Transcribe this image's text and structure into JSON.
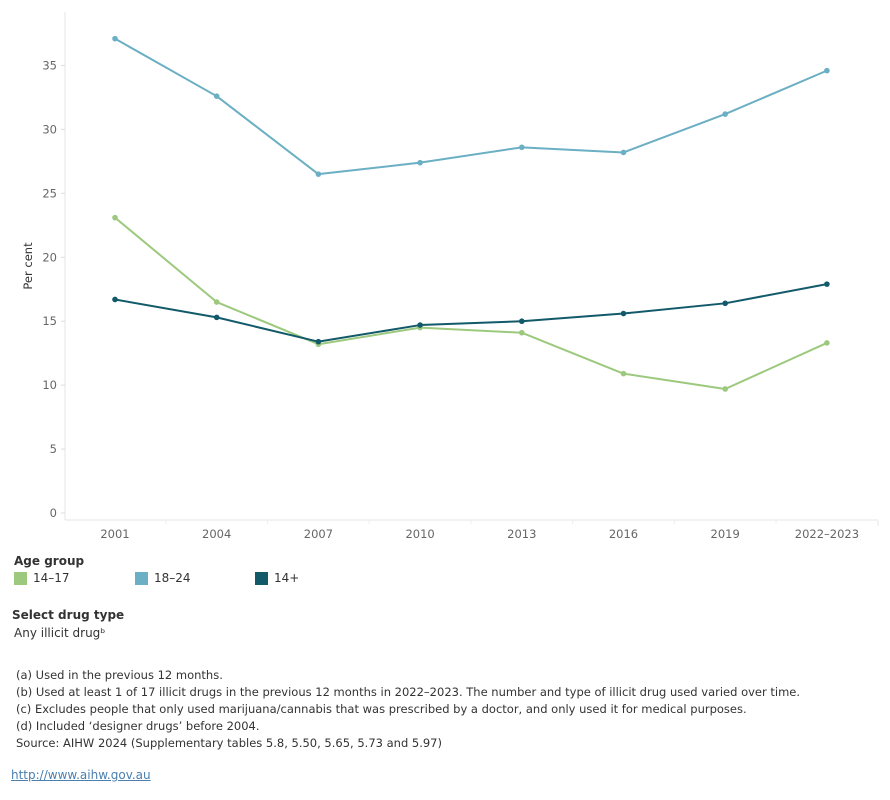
{
  "chart_data": {
    "type": "line",
    "title": "",
    "xlabel": "",
    "ylabel": "Per cent",
    "categories": [
      "2001",
      "2004",
      "2007",
      "2010",
      "2013",
      "2016",
      "2019",
      "2022–2023"
    ],
    "ylim": [
      0,
      38
    ],
    "yticks": [
      0,
      5,
      10,
      15,
      20,
      25,
      30,
      35
    ],
    "grid": false,
    "legend_placement": "bottom-left",
    "series": [
      {
        "name": "14–17",
        "color": "#9cc97d",
        "values": [
          23.1,
          16.5,
          13.2,
          14.5,
          14.1,
          10.9,
          9.7,
          13.3
        ]
      },
      {
        "name": "18–24",
        "color": "#6aafc3",
        "values": [
          37.1,
          32.6,
          26.5,
          27.4,
          28.6,
          28.2,
          31.2,
          34.6
        ]
      },
      {
        "name": "14+",
        "color": "#125a6a",
        "values": [
          16.7,
          15.3,
          13.4,
          14.7,
          15.0,
          15.6,
          16.4,
          17.9
        ]
      }
    ]
  },
  "legend": {
    "title": "Age group",
    "items": [
      {
        "label": "14–17",
        "color": "#9cc97d"
      },
      {
        "label": "18–24",
        "color": "#6aafc3"
      },
      {
        "label": "14+",
        "color": "#125a6a"
      }
    ]
  },
  "filter": {
    "title": "Select drug type",
    "value": "Any illicit drugᵇ"
  },
  "notes": [
    "(a) Used in the previous 12 months.",
    "(b) Used at least 1 of 17 illicit drugs in the previous 12 months in 2022–2023. The number and type of illicit drug used varied over time.",
    "(c) Excludes people that only used marijuana/cannabis that was prescribed by a doctor, and only used it for medical purposes.",
    "(d) Included ‘designer drugs’ before 2004.",
    "Source: AIHW 2024 (Supplementary tables 5.8, 5.50, 5.65, 5.73 and 5.97)"
  ],
  "link": "http://www.aihw.gov.au"
}
